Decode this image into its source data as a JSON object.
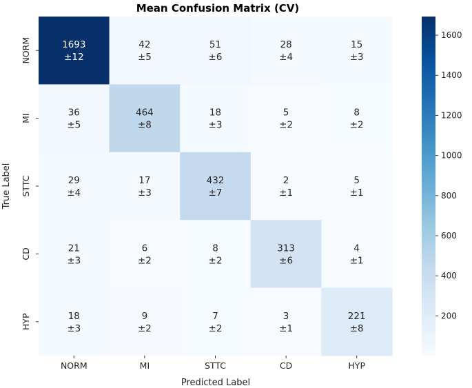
{
  "chart_data": {
    "type": "heatmap",
    "title": "Mean Confusion Matrix (CV)",
    "xlabel": "Predicted Label",
    "ylabel": "True Label",
    "x_categories": [
      "NORM",
      "MI",
      "STTC",
      "CD",
      "HYP"
    ],
    "y_categories": [
      "NORM",
      "MI",
      "STTC",
      "CD",
      "HYP"
    ],
    "values": [
      [
        1693,
        42,
        51,
        28,
        15
      ],
      [
        36,
        464,
        18,
        5,
        8
      ],
      [
        29,
        17,
        432,
        2,
        5
      ],
      [
        21,
        6,
        8,
        313,
        4
      ],
      [
        18,
        9,
        7,
        3,
        221
      ]
    ],
    "std_labels": [
      [
        "±12",
        "±5",
        "±6",
        "±4",
        "±3"
      ],
      [
        "±5",
        "±8",
        "±3",
        "±2",
        "±2"
      ],
      [
        "±4",
        "±3",
        "±7",
        "±1",
        "±1"
      ],
      [
        "±3",
        "±2",
        "±2",
        "±6",
        "±1"
      ],
      [
        "±3",
        "±2",
        "±2",
        "±1",
        "±8"
      ]
    ],
    "colormap": "Blues",
    "colorbar": {
      "min": 2,
      "max": 1693,
      "ticks": [
        200,
        400,
        600,
        800,
        1000,
        1200,
        1400,
        1600
      ]
    },
    "colors": {
      "low": "#f7fbff",
      "high": "#08306b",
      "text_dark": "#262626",
      "text_light": "#ffffff"
    }
  }
}
